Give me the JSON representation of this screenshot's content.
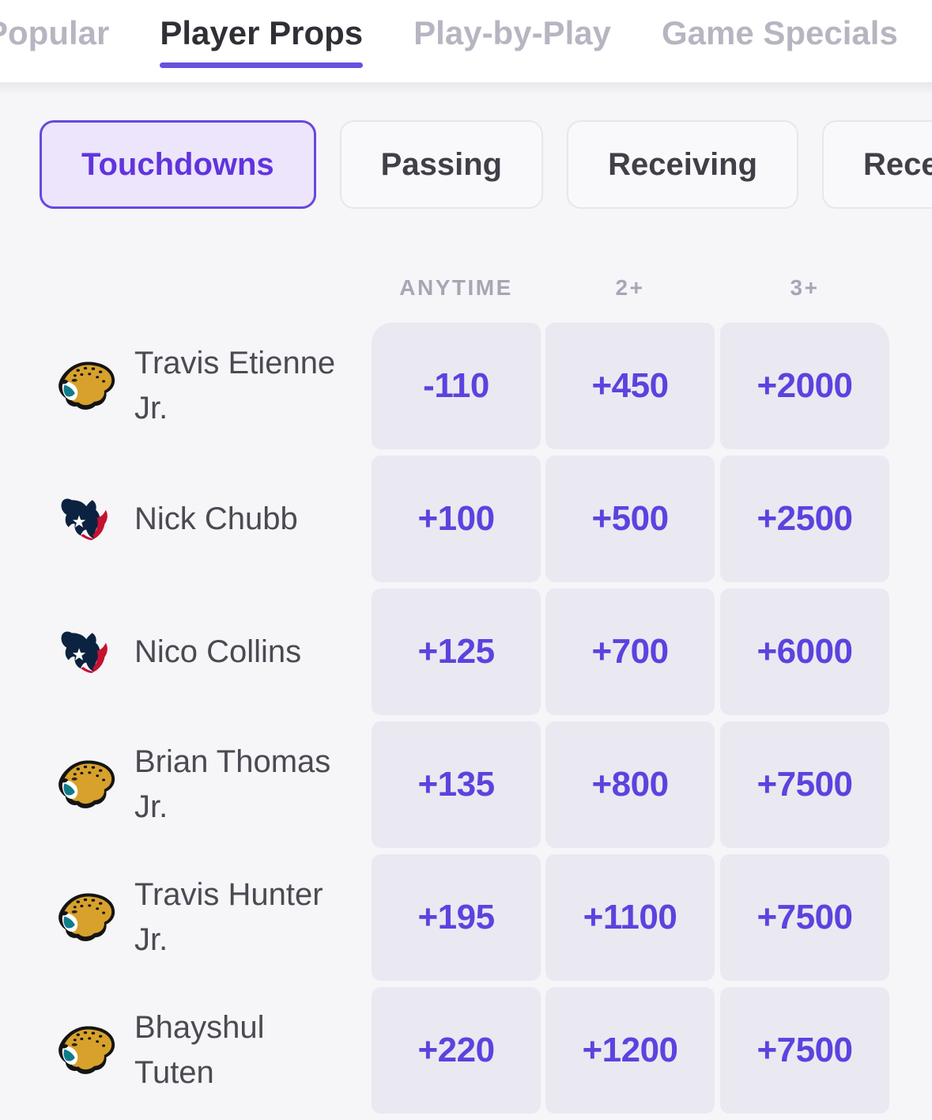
{
  "tabs": {
    "items": [
      {
        "label": "Popular",
        "active": false
      },
      {
        "label": "Player Props",
        "active": true
      },
      {
        "label": "Play-by-Play",
        "active": false
      },
      {
        "label": "Game Specials",
        "active": false
      }
    ]
  },
  "filters": {
    "items": [
      {
        "label": "Touchdowns",
        "selected": true
      },
      {
        "label": "Passing",
        "selected": false
      },
      {
        "label": "Receiving",
        "selected": false
      },
      {
        "label": "Receptions",
        "selected": false
      }
    ]
  },
  "props_table": {
    "columns": [
      "ANYTIME",
      "2+",
      "3+"
    ],
    "rows": [
      {
        "player": "Travis Etienne Jr.",
        "team": "jaguars",
        "odds": [
          "-110",
          "+450",
          "+2000"
        ]
      },
      {
        "player": "Nick Chubb",
        "team": "texans",
        "odds": [
          "+100",
          "+500",
          "+2500"
        ]
      },
      {
        "player": "Nico Collins",
        "team": "texans",
        "odds": [
          "+125",
          "+700",
          "+6000"
        ]
      },
      {
        "player": "Brian Thomas Jr.",
        "team": "jaguars",
        "odds": [
          "+135",
          "+800",
          "+7500"
        ]
      },
      {
        "player": "Travis Hunter Jr.",
        "team": "jaguars",
        "odds": [
          "+195",
          "+1100",
          "+7500"
        ]
      },
      {
        "player": "Bhayshul Tuten",
        "team": "jaguars",
        "odds": [
          "+220",
          "+1200",
          "+7500"
        ]
      }
    ]
  },
  "colors": {
    "accent_purple": "#6a46e0",
    "odds_text": "#5b43df",
    "tab_underline": "#6a50dc",
    "selected_chip_bg": "#ece5fb",
    "cell_bg": "#eae9f1",
    "page_bg": "#f6f5f8",
    "active_tab_text": "#312f36",
    "inactive_tab_text": "#b7b5c1",
    "column_header_text": "#a7a6b4",
    "player_name_text": "#4b4a52",
    "jaguars_gold": "#d7a12c",
    "jaguars_teal": "#0e7c8a",
    "texans_navy": "#0b2240",
    "texans_red": "#c41230"
  }
}
